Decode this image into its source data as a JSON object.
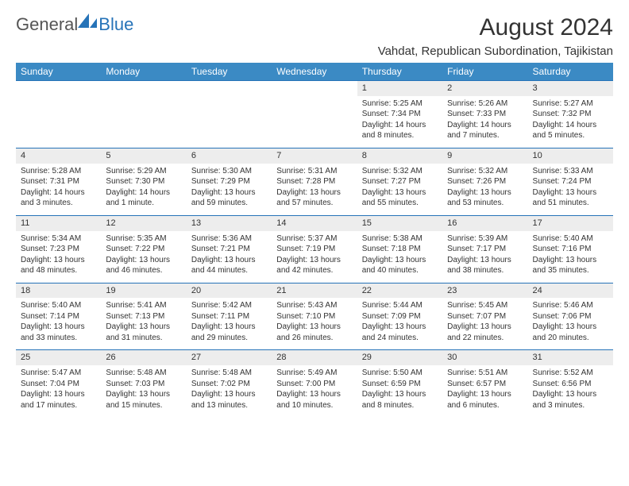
{
  "brand": {
    "text1": "General",
    "text2": "Blue"
  },
  "title": "August 2024",
  "location": "Vahdat, Republican Subordination, Tajikistan",
  "colors": {
    "header_bg": "#3b8ac4",
    "header_text": "#ffffff",
    "border": "#2673b8",
    "daynum_bg": "#ededed",
    "text": "#333333",
    "background": "#ffffff"
  },
  "day_headers": [
    "Sunday",
    "Monday",
    "Tuesday",
    "Wednesday",
    "Thursday",
    "Friday",
    "Saturday"
  ],
  "weeks": [
    [
      {
        "n": "",
        "sr": "",
        "ss": "",
        "dl": ""
      },
      {
        "n": "",
        "sr": "",
        "ss": "",
        "dl": ""
      },
      {
        "n": "",
        "sr": "",
        "ss": "",
        "dl": ""
      },
      {
        "n": "",
        "sr": "",
        "ss": "",
        "dl": ""
      },
      {
        "n": "1",
        "sr": "Sunrise: 5:25 AM",
        "ss": "Sunset: 7:34 PM",
        "dl": "Daylight: 14 hours and 8 minutes."
      },
      {
        "n": "2",
        "sr": "Sunrise: 5:26 AM",
        "ss": "Sunset: 7:33 PM",
        "dl": "Daylight: 14 hours and 7 minutes."
      },
      {
        "n": "3",
        "sr": "Sunrise: 5:27 AM",
        "ss": "Sunset: 7:32 PM",
        "dl": "Daylight: 14 hours and 5 minutes."
      }
    ],
    [
      {
        "n": "4",
        "sr": "Sunrise: 5:28 AM",
        "ss": "Sunset: 7:31 PM",
        "dl": "Daylight: 14 hours and 3 minutes."
      },
      {
        "n": "5",
        "sr": "Sunrise: 5:29 AM",
        "ss": "Sunset: 7:30 PM",
        "dl": "Daylight: 14 hours and 1 minute."
      },
      {
        "n": "6",
        "sr": "Sunrise: 5:30 AM",
        "ss": "Sunset: 7:29 PM",
        "dl": "Daylight: 13 hours and 59 minutes."
      },
      {
        "n": "7",
        "sr": "Sunrise: 5:31 AM",
        "ss": "Sunset: 7:28 PM",
        "dl": "Daylight: 13 hours and 57 minutes."
      },
      {
        "n": "8",
        "sr": "Sunrise: 5:32 AM",
        "ss": "Sunset: 7:27 PM",
        "dl": "Daylight: 13 hours and 55 minutes."
      },
      {
        "n": "9",
        "sr": "Sunrise: 5:32 AM",
        "ss": "Sunset: 7:26 PM",
        "dl": "Daylight: 13 hours and 53 minutes."
      },
      {
        "n": "10",
        "sr": "Sunrise: 5:33 AM",
        "ss": "Sunset: 7:24 PM",
        "dl": "Daylight: 13 hours and 51 minutes."
      }
    ],
    [
      {
        "n": "11",
        "sr": "Sunrise: 5:34 AM",
        "ss": "Sunset: 7:23 PM",
        "dl": "Daylight: 13 hours and 48 minutes."
      },
      {
        "n": "12",
        "sr": "Sunrise: 5:35 AM",
        "ss": "Sunset: 7:22 PM",
        "dl": "Daylight: 13 hours and 46 minutes."
      },
      {
        "n": "13",
        "sr": "Sunrise: 5:36 AM",
        "ss": "Sunset: 7:21 PM",
        "dl": "Daylight: 13 hours and 44 minutes."
      },
      {
        "n": "14",
        "sr": "Sunrise: 5:37 AM",
        "ss": "Sunset: 7:19 PM",
        "dl": "Daylight: 13 hours and 42 minutes."
      },
      {
        "n": "15",
        "sr": "Sunrise: 5:38 AM",
        "ss": "Sunset: 7:18 PM",
        "dl": "Daylight: 13 hours and 40 minutes."
      },
      {
        "n": "16",
        "sr": "Sunrise: 5:39 AM",
        "ss": "Sunset: 7:17 PM",
        "dl": "Daylight: 13 hours and 38 minutes."
      },
      {
        "n": "17",
        "sr": "Sunrise: 5:40 AM",
        "ss": "Sunset: 7:16 PM",
        "dl": "Daylight: 13 hours and 35 minutes."
      }
    ],
    [
      {
        "n": "18",
        "sr": "Sunrise: 5:40 AM",
        "ss": "Sunset: 7:14 PM",
        "dl": "Daylight: 13 hours and 33 minutes."
      },
      {
        "n": "19",
        "sr": "Sunrise: 5:41 AM",
        "ss": "Sunset: 7:13 PM",
        "dl": "Daylight: 13 hours and 31 minutes."
      },
      {
        "n": "20",
        "sr": "Sunrise: 5:42 AM",
        "ss": "Sunset: 7:11 PM",
        "dl": "Daylight: 13 hours and 29 minutes."
      },
      {
        "n": "21",
        "sr": "Sunrise: 5:43 AM",
        "ss": "Sunset: 7:10 PM",
        "dl": "Daylight: 13 hours and 26 minutes."
      },
      {
        "n": "22",
        "sr": "Sunrise: 5:44 AM",
        "ss": "Sunset: 7:09 PM",
        "dl": "Daylight: 13 hours and 24 minutes."
      },
      {
        "n": "23",
        "sr": "Sunrise: 5:45 AM",
        "ss": "Sunset: 7:07 PM",
        "dl": "Daylight: 13 hours and 22 minutes."
      },
      {
        "n": "24",
        "sr": "Sunrise: 5:46 AM",
        "ss": "Sunset: 7:06 PM",
        "dl": "Daylight: 13 hours and 20 minutes."
      }
    ],
    [
      {
        "n": "25",
        "sr": "Sunrise: 5:47 AM",
        "ss": "Sunset: 7:04 PM",
        "dl": "Daylight: 13 hours and 17 minutes."
      },
      {
        "n": "26",
        "sr": "Sunrise: 5:48 AM",
        "ss": "Sunset: 7:03 PM",
        "dl": "Daylight: 13 hours and 15 minutes."
      },
      {
        "n": "27",
        "sr": "Sunrise: 5:48 AM",
        "ss": "Sunset: 7:02 PM",
        "dl": "Daylight: 13 hours and 13 minutes."
      },
      {
        "n": "28",
        "sr": "Sunrise: 5:49 AM",
        "ss": "Sunset: 7:00 PM",
        "dl": "Daylight: 13 hours and 10 minutes."
      },
      {
        "n": "29",
        "sr": "Sunrise: 5:50 AM",
        "ss": "Sunset: 6:59 PM",
        "dl": "Daylight: 13 hours and 8 minutes."
      },
      {
        "n": "30",
        "sr": "Sunrise: 5:51 AM",
        "ss": "Sunset: 6:57 PM",
        "dl": "Daylight: 13 hours and 6 minutes."
      },
      {
        "n": "31",
        "sr": "Sunrise: 5:52 AM",
        "ss": "Sunset: 6:56 PM",
        "dl": "Daylight: 13 hours and 3 minutes."
      }
    ]
  ]
}
